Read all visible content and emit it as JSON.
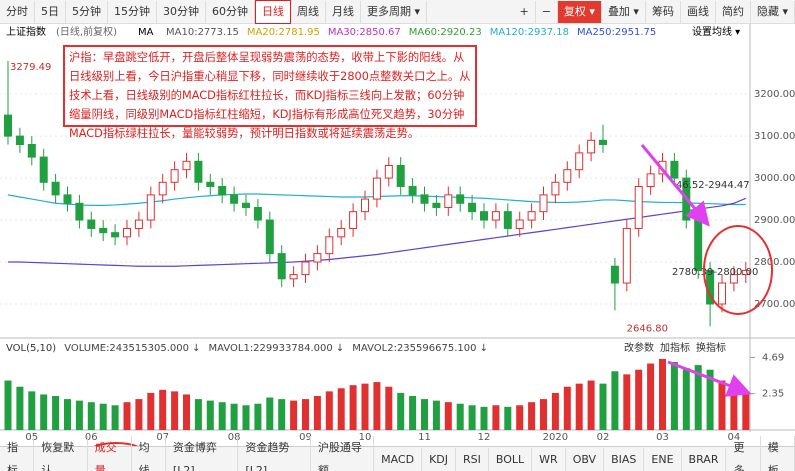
{
  "toolbar": {
    "left": [
      "分时",
      "5日",
      "5分钟",
      "15分钟",
      "30分钟",
      "60分钟",
      "日线",
      "周线",
      "月线",
      "更多周期 ▾"
    ],
    "selected": 6,
    "right": [
      "+",
      "−",
      "复权 ▾",
      "叠加 ▾",
      "筹码",
      "画线",
      "简约",
      "隐藏 ▾"
    ],
    "highlight": 2
  },
  "header": {
    "title": "上证指数",
    "subtitle": "(日线,前复权)",
    "ma": "MA",
    "ma_legend": [
      {
        "text": "MA10:2773.15",
        "color": "#555555"
      },
      {
        "text": "MA20:2781.95",
        "color": "#d4a000"
      },
      {
        "text": "MA30:2850.67",
        "color": "#c030c0"
      },
      {
        "text": "MA60:2920.23",
        "color": "#30a030"
      },
      {
        "text": "MA120:2937.18",
        "color": "#20b0c8"
      },
      {
        "text": "MA250:2951.75",
        "color": "#3050d0"
      }
    ],
    "setting": "设置均线 ▾"
  },
  "note": "沪指：早盘跳空低开，开盘后整体呈现弱势震荡的态势，收带上下影的阳线。从日线级别上看，今日沪指重心稍显下移，同时继续收于2800点整数关口之上。从技术上看，日线级别的MACD指标红柱拉长，而KDJ指标三线向上发散；60分钟缩量阴线，同级别MACD指标红柱缩短，KDJ指标有形成高位死叉趋势，30分钟MACD指标绿柱拉长，量能较弱势，预计明日指数或将延续震荡走势。",
  "chart_data": [
    {
      "type": "candlestick",
      "categories": [
        null,
        null,
        "05",
        null,
        null,
        null,
        null,
        "06",
        null,
        null,
        null,
        null,
        null,
        "07",
        null,
        null,
        null,
        null,
        null,
        "08",
        null,
        null,
        null,
        null,
        null,
        "09",
        null,
        null,
        null,
        null,
        "10",
        null,
        null,
        null,
        null,
        "11",
        null,
        null,
        null,
        null,
        "12",
        null,
        null,
        null,
        null,
        null,
        "2020",
        null,
        null,
        null,
        "02",
        null,
        null,
        null,
        null,
        "03",
        null,
        null,
        null,
        null,
        null,
        "04",
        null
      ],
      "open": [
        3150,
        3100,
        3080,
        3050,
        2990,
        2960,
        2940,
        2900,
        2880,
        2870,
        2860,
        2880,
        2900,
        2960,
        2990,
        3020,
        3040,
        2990,
        2980,
        2960,
        2940,
        2930,
        2900,
        2820,
        2760,
        2770,
        2800,
        2820,
        2860,
        2880,
        2920,
        2950,
        3000,
        3030,
        2980,
        2960,
        2940,
        2930,
        2960,
        2940,
        2920,
        2900,
        2920,
        2880,
        2900,
        2920,
        2960,
        2990,
        3020,
        3060,
        3090,
        2790,
        2750,
        2880,
        2980,
        3010,
        3040,
        3000,
        2900,
        2780,
        2700,
        2750,
        2770
      ],
      "high": [
        3279.49,
        3120,
        3100,
        3070,
        3010,
        2980,
        2960,
        2920,
        2900,
        2890,
        2900,
        2920,
        2980,
        3010,
        3040,
        3060,
        3060,
        3010,
        3000,
        2980,
        2960,
        2950,
        2920,
        2840,
        2790,
        2820,
        2840,
        2880,
        2900,
        2940,
        2970,
        3020,
        3050,
        3050,
        3000,
        2980,
        2960,
        2980,
        2980,
        2960,
        2940,
        2940,
        2940,
        2920,
        2940,
        2980,
        3010,
        3040,
        3080,
        3110,
        3127,
        2810,
        2900,
        3000,
        3030,
        3060,
        3060,
        3020,
        2920,
        2800,
        2770,
        2790,
        2800
      ],
      "low": [
        3080,
        3060,
        3030,
        2970,
        2940,
        2920,
        2880,
        2860,
        2850,
        2840,
        2840,
        2860,
        2880,
        2940,
        2970,
        3000,
        2970,
        2960,
        2940,
        2920,
        2910,
        2880,
        2800,
        2740,
        2740,
        2750,
        2780,
        2800,
        2840,
        2860,
        2900,
        2930,
        2980,
        2960,
        2940,
        2920,
        2910,
        2910,
        2920,
        2900,
        2880,
        2880,
        2860,
        2860,
        2880,
        2900,
        2940,
        2970,
        3000,
        3040,
        3060,
        2685,
        2730,
        2860,
        2960,
        2990,
        2980,
        2880,
        2760,
        2646.8,
        2680,
        2730,
        2750
      ],
      "close": [
        3100,
        3080,
        3050,
        2990,
        2960,
        2940,
        2900,
        2880,
        2870,
        2860,
        2880,
        2900,
        2960,
        2990,
        3020,
        3040,
        2990,
        2980,
        2960,
        2940,
        2930,
        2900,
        2820,
        2760,
        2770,
        2800,
        2820,
        2860,
        2880,
        2920,
        2950,
        3000,
        3030,
        2980,
        2960,
        2940,
        2930,
        2960,
        2940,
        2920,
        2900,
        2920,
        2880,
        2900,
        2920,
        2960,
        2990,
        3020,
        3060,
        3090,
        3080,
        2750,
        2880,
        2980,
        3010,
        3040,
        3000,
        2900,
        2780,
        2700,
        2750,
        2770,
        2780
      ],
      "overlays": [
        {
          "color": "#20b0c8",
          "values": [
            2960,
            2955,
            2950,
            2945,
            2940,
            2938,
            2936,
            2935,
            2935,
            2936,
            2938,
            2940,
            2943,
            2946,
            2950,
            2953,
            2956,
            2958,
            2960,
            2961,
            2962,
            2962,
            2961,
            2960,
            2959,
            2958,
            2957,
            2956,
            2955,
            2955,
            2955,
            2956,
            2957,
            2958,
            2958,
            2957,
            2956,
            2955,
            2954,
            2953,
            2952,
            2950,
            2948,
            2946,
            2944,
            2943,
            2942,
            2942,
            2943,
            2945,
            2948,
            2948,
            2946,
            2944,
            2943,
            2942,
            2942,
            2941,
            2940,
            2939,
            2938,
            2937,
            2937
          ]
        },
        {
          "color": "#6040d0",
          "values": [
            2800,
            2800,
            2799,
            2798,
            2797,
            2796,
            2795,
            2794,
            2793,
            2792,
            2791,
            2790,
            2790,
            2790,
            2790,
            2791,
            2792,
            2793,
            2794,
            2795,
            2796,
            2797,
            2798,
            2799,
            2800,
            2802,
            2804,
            2806,
            2809,
            2812,
            2815,
            2818,
            2822,
            2826,
            2830,
            2834,
            2838,
            2842,
            2846,
            2850,
            2854,
            2858,
            2862,
            2866,
            2870,
            2874,
            2878,
            2882,
            2886,
            2890,
            2894,
            2898,
            2902,
            2906,
            2910,
            2914,
            2918,
            2922,
            2926,
            2930,
            2934,
            2940,
            2951.75
          ]
        }
      ],
      "up_color": "#e03030",
      "down_color": "#20a040",
      "ylim": [
        2619,
        3329
      ],
      "yticks": [
        {
          "value": 2700,
          "label": "2700.00"
        },
        {
          "value": 2800,
          "label": "2800.00"
        },
        {
          "value": 2900,
          "label": "2900.00"
        },
        {
          "value": 3000,
          "label": "3000.00"
        },
        {
          "value": 3100,
          "label": "3100.00"
        },
        {
          "value": 3200,
          "label": "3200.00"
        }
      ],
      "annotations": [
        "3279.49",
        "2646.80",
        "2780.39-2800.00",
        "46.52-2944.47"
      ]
    },
    {
      "type": "bar",
      "legend": [
        "VOL(5,10)",
        "VOLUME:243515305.000 ↓",
        "MAVOL1:229933784.000 ↓",
        "MAVOL2:235596675.100 ↓"
      ],
      "buttons": [
        "改参数",
        "加指标",
        "换指标"
      ],
      "values": [
        3.2,
        2.8,
        2.5,
        2.3,
        2.2,
        2.0,
        1.9,
        1.8,
        1.7,
        1.6,
        1.8,
        2.0,
        2.4,
        2.6,
        2.5,
        2.3,
        2.0,
        1.9,
        1.8,
        1.7,
        1.6,
        1.7,
        2.1,
        2.0,
        1.9,
        2.0,
        2.2,
        2.5,
        2.7,
        2.9,
        3.0,
        3.1,
        2.8,
        2.4,
        2.2,
        2.0,
        1.9,
        1.8,
        1.7,
        1.6,
        1.5,
        1.6,
        1.5,
        1.6,
        1.8,
        2.0,
        2.4,
        2.8,
        3.0,
        3.2,
        3.0,
        3.8,
        3.6,
        3.9,
        4.3,
        4.6,
        4.4,
        4.0,
        4.2,
        3.9,
        3.2,
        2.8,
        2.4
      ],
      "ylim": [
        0,
        5.5
      ],
      "yticks": [
        2.35,
        4.69
      ]
    }
  ],
  "tabs": {
    "items": [
      "指标",
      "恢复默认",
      "成交量",
      "均线",
      "资金博弈[L2]",
      "资金趋势[L2]",
      "沪股通导额",
      "MACD",
      "KDJ",
      "RSI",
      "BOLL",
      "WR",
      "OBV",
      "BIAS",
      "ENE",
      "BRAR",
      "更多",
      "模板"
    ],
    "selected": 2
  }
}
